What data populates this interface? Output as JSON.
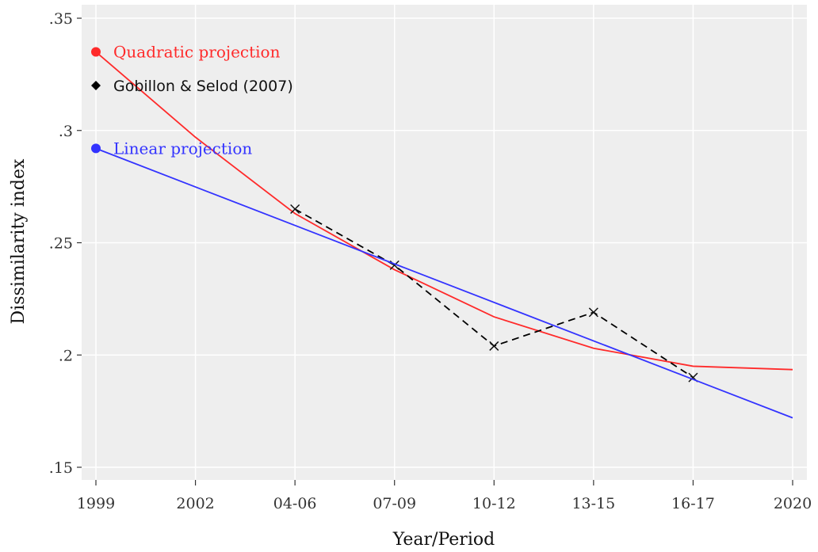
{
  "chart_data": {
    "type": "line",
    "xlabel": "Year/Period",
    "ylabel": "Dissimilarity index",
    "categories": [
      "1999",
      "2002",
      "04-06",
      "07-09",
      "10-12",
      "13-15",
      "16-17",
      "2020"
    ],
    "x_positions": [
      1999,
      2002,
      2005,
      2008,
      2011,
      2014,
      2017,
      2020
    ],
    "yticks": [
      {
        "value": 0.15,
        "label": ".15"
      },
      {
        "value": 0.2,
        "label": ".2"
      },
      {
        "value": 0.25,
        "label": ".25"
      },
      {
        "value": 0.3,
        "label": ".3"
      },
      {
        "value": 0.35,
        "label": ".35"
      }
    ],
    "ylim": [
      0.145,
      0.355
    ],
    "xlim": [
      1999,
      2020
    ],
    "grid": true,
    "legend": "top-left",
    "series": [
      {
        "name": "Quadratic projection",
        "color": "#ff2a2a",
        "style": "solid",
        "marker": "circle",
        "x": [
          1999,
          2002,
          2005,
          2008,
          2011,
          2014,
          2017,
          2020
        ],
        "values": [
          0.335,
          0.297,
          0.263,
          0.238,
          0.217,
          0.203,
          0.195,
          0.1935
        ]
      },
      {
        "name": "Gobillon & Selod (2007)",
        "color": "#000000",
        "style": "dashed",
        "marker": "x",
        "x": [
          2005,
          2008,
          2011,
          2014,
          2017
        ],
        "values": [
          0.265,
          0.24,
          0.204,
          0.219,
          0.19
        ]
      },
      {
        "name": "Linear projection",
        "color": "#3333ff",
        "style": "solid",
        "marker": "circle",
        "x": [
          1999,
          2020
        ],
        "values": [
          0.292,
          0.172
        ]
      }
    ]
  }
}
